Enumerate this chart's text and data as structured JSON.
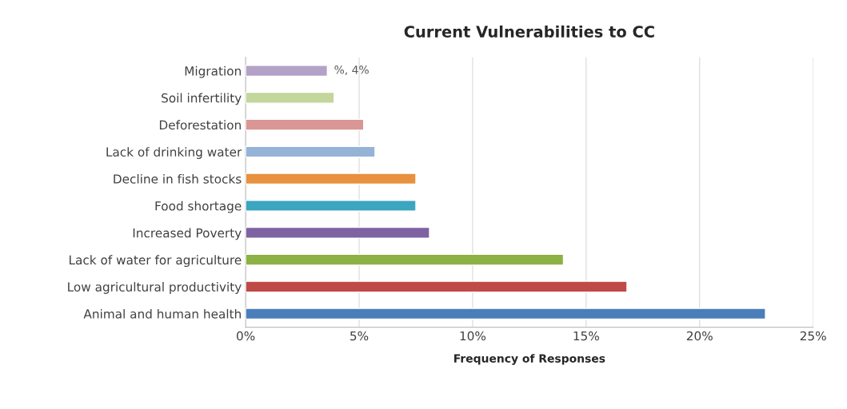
{
  "chart_data": {
    "type": "bar",
    "orientation": "horizontal",
    "title": "Current Vulnerabilities to CC",
    "xlabel": "Frequency of Responses",
    "categories": [
      "Migration",
      "Soil infertility",
      "Deforestation",
      "Lack of drinking water",
      "Decline in fish stocks",
      "Food shortage",
      "Increased Poverty",
      "Lack of water for agriculture",
      "Low agricultural productivity",
      "Animal and human health"
    ],
    "values": [
      3.6,
      3.9,
      5.2,
      5.7,
      7.5,
      7.5,
      8.1,
      14.0,
      16.8,
      22.9
    ],
    "value_labels": [
      "%, 4%",
      null,
      null,
      null,
      null,
      null,
      null,
      null,
      null,
      null
    ],
    "colors": [
      "#b3a2c7",
      "#c3d69b",
      "#d99694",
      "#95b3d7",
      "#e8913f",
      "#3ca5c0",
      "#7e62a1",
      "#8cb144",
      "#be4b48",
      "#4a7ebb"
    ],
    "xlim": [
      0,
      25
    ],
    "xticks": [
      {
        "value": 0,
        "label": "0%"
      },
      {
        "value": 5,
        "label": "5%"
      },
      {
        "value": 10,
        "label": "10%"
      },
      {
        "value": 15,
        "label": "15%"
      },
      {
        "value": 20,
        "label": "20%"
      },
      {
        "value": 25,
        "label": "25%"
      }
    ],
    "grid": "x"
  }
}
